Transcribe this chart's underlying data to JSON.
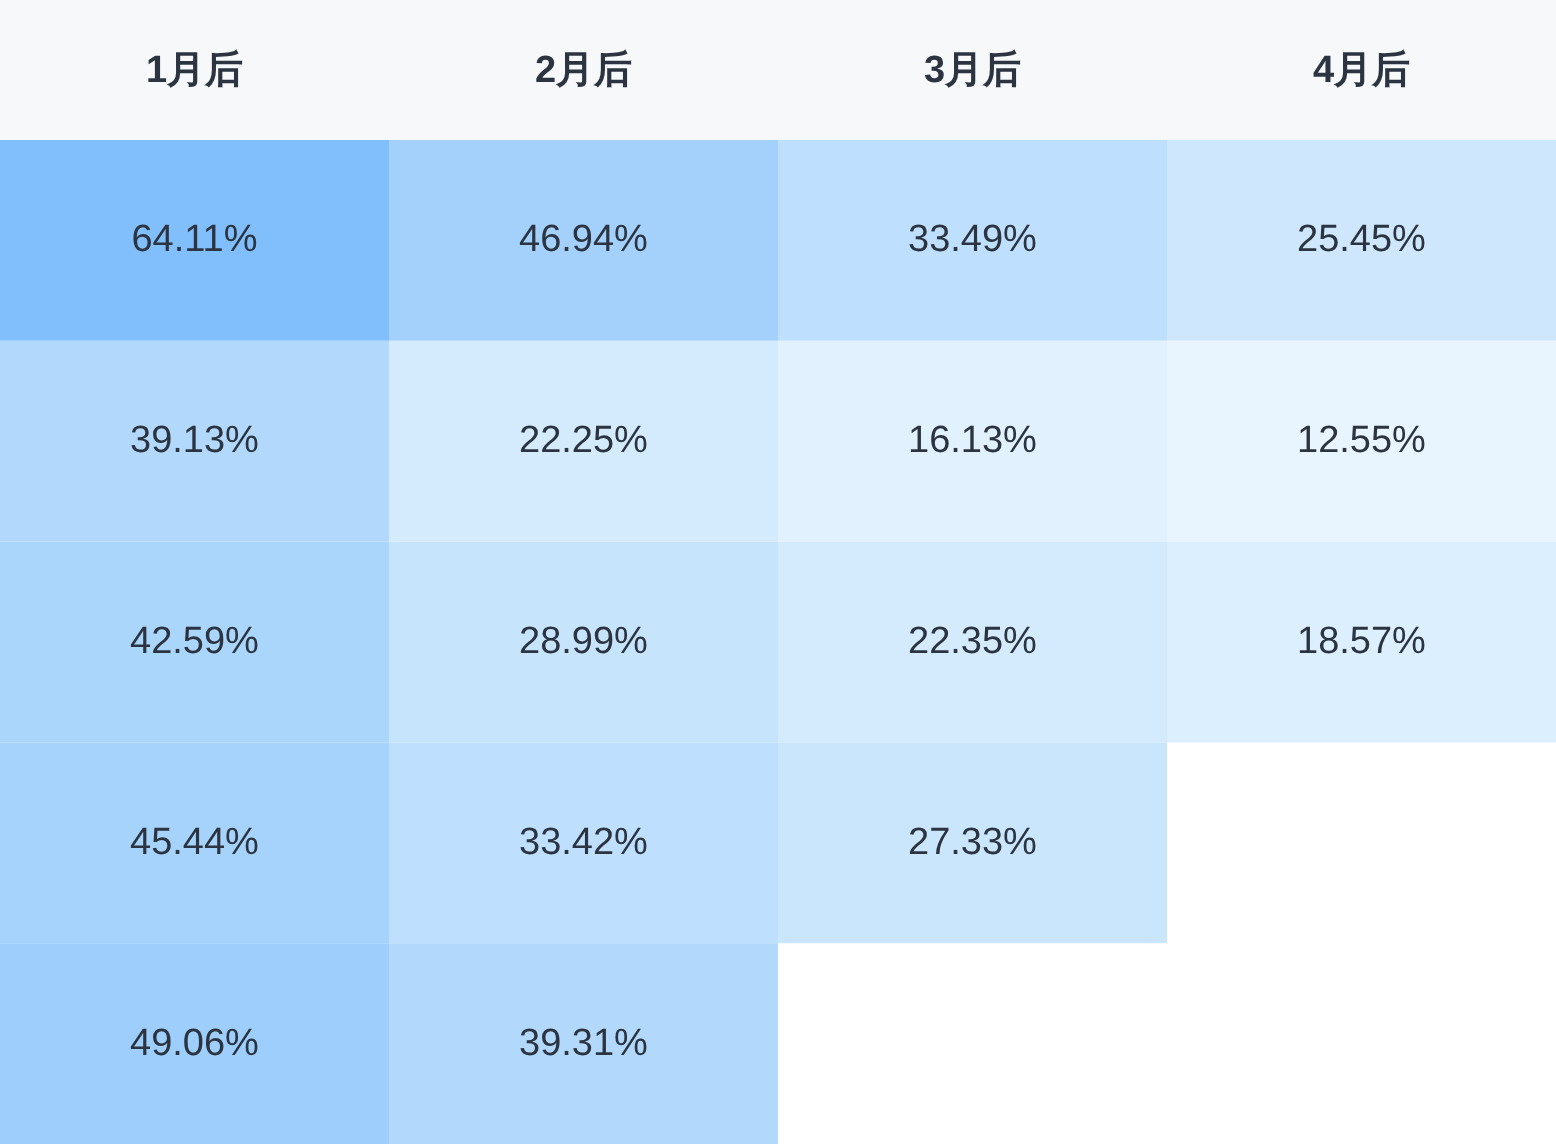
{
  "chart_data": {
    "type": "heatmap",
    "categories": [
      "1月后",
      "2月后",
      "3月后",
      "4月后"
    ],
    "y_categories": [
      null,
      null,
      null,
      null,
      null
    ],
    "cells": [
      [
        64.11,
        46.94,
        33.49,
        25.45
      ],
      [
        39.13,
        22.25,
        16.13,
        12.55
      ],
      [
        42.59,
        28.99,
        22.35,
        18.57
      ],
      [
        45.44,
        33.42,
        27.33,
        null
      ],
      [
        49.06,
        39.31,
        null,
        null
      ]
    ],
    "cell_labels": [
      [
        "64.11%",
        "46.94%",
        "33.49%",
        "25.45%"
      ],
      [
        "39.13%",
        "22.25%",
        "16.13%",
        "12.55%"
      ],
      [
        "42.59%",
        "28.99%",
        "22.35%",
        "18.57%"
      ],
      [
        "45.44%",
        "33.42%",
        "27.33%",
        null
      ],
      [
        "49.06%",
        "39.31%",
        null,
        null
      ]
    ]
  }
}
